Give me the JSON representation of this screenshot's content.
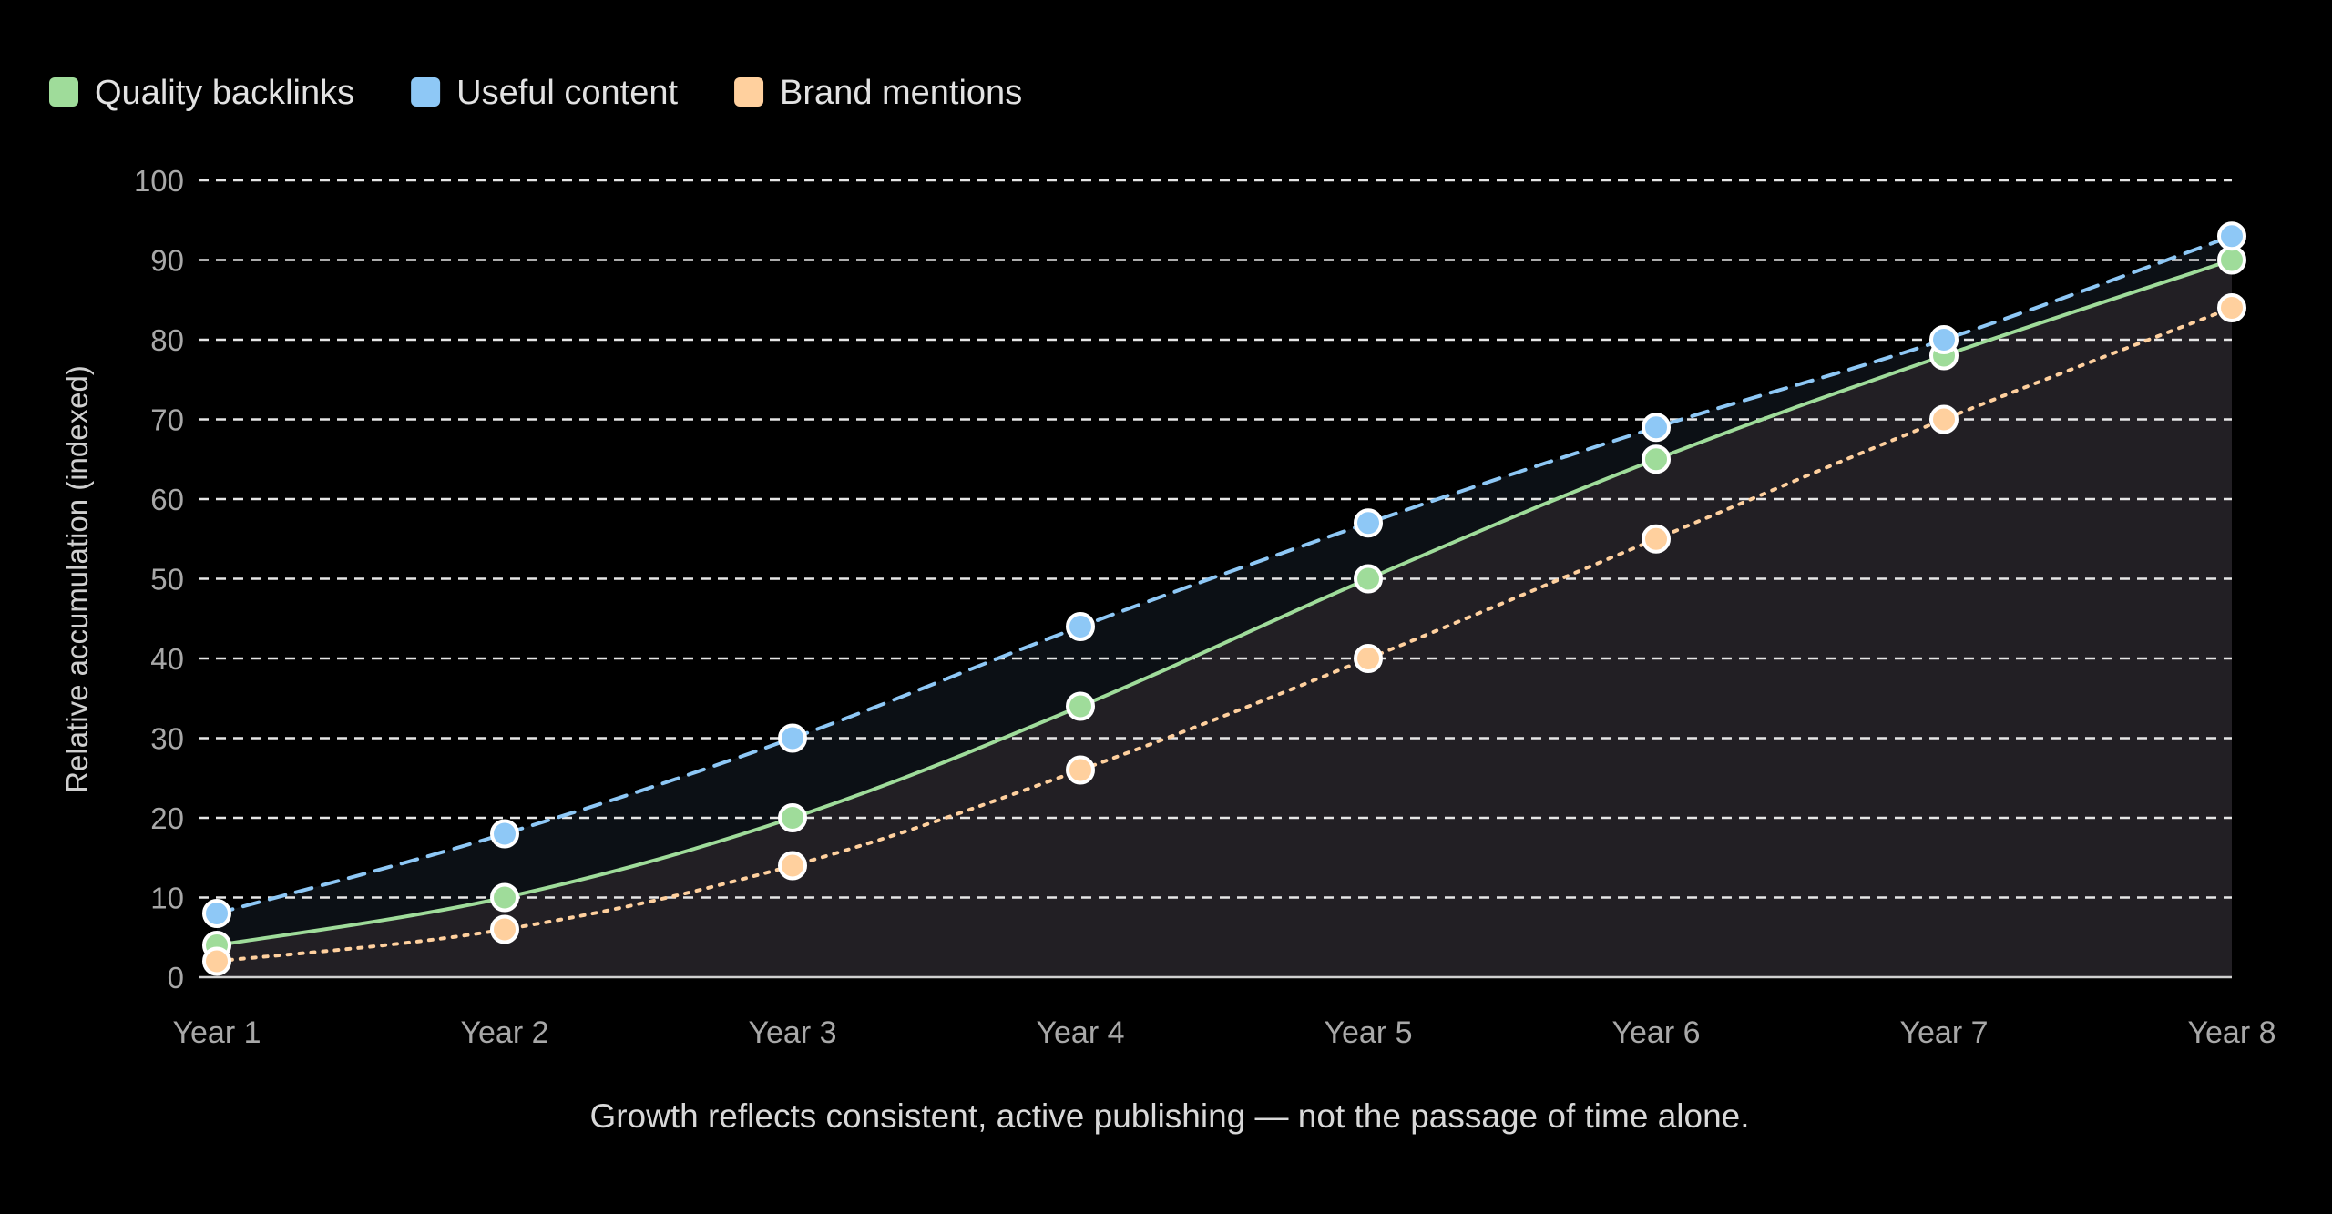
{
  "chart_data": {
    "type": "line",
    "title": "",
    "caption": "Growth reflects consistent, active publishing — not the passage of time alone.",
    "xlabel": "",
    "ylabel": "Relative accumulation (indexed)",
    "categories": [
      "Year 1",
      "Year 2",
      "Year 3",
      "Year 4",
      "Year 5",
      "Year 6",
      "Year 7",
      "Year 8"
    ],
    "ylim": [
      0,
      100
    ],
    "yticks": [
      0,
      10,
      20,
      30,
      40,
      50,
      60,
      70,
      80,
      90,
      100
    ],
    "grid": true,
    "legend": "top-left",
    "series": [
      {
        "name": "Quality backlinks",
        "values": [
          4,
          10,
          20,
          34,
          50,
          65,
          78,
          90
        ],
        "color": "#9fdc9a",
        "line_style": "solid",
        "fill": "#221f24"
      },
      {
        "name": "Useful content",
        "values": [
          8,
          18,
          30,
          44,
          57,
          69,
          80,
          93
        ],
        "color": "#8ec8f6",
        "line_style": "dashed",
        "fill": "#0c1015"
      },
      {
        "name": "Brand mentions",
        "values": [
          2,
          6,
          14,
          26,
          40,
          55,
          70,
          84
        ],
        "color": "#ffd09e",
        "line_style": "dotted",
        "fill": "#221f24"
      }
    ]
  }
}
